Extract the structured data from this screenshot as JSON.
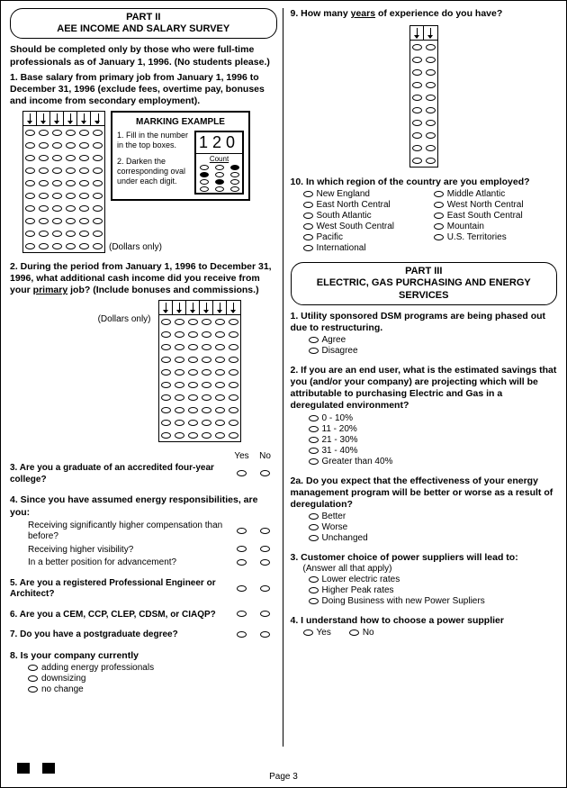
{
  "page_number": "Page 3",
  "left": {
    "part_header_line1": "PART II",
    "part_header_line2": "AEE INCOME AND SALARY SURVEY",
    "intro": "Should be completed only by those who were full-time professionals as of January 1, 1996. (No students please.)",
    "q1": "1. Base salary from primary job from January 1, 1996 to December 31, 1996 (exclude fees, overtime pay, bonuses and income from secondary employment).",
    "dollars_only": "(Dollars only)",
    "marking": {
      "title": "MARKING EXAMPLE",
      "step1": "1. Fill in the number in the top boxes.",
      "step2": "2. Darken the corresponding oval under each digit.",
      "example_num": "120",
      "example_label": "Count"
    },
    "q2_a": "2. During the period from January 1, 1996 to December 31, 1996, what additional cash income did you receive from your ",
    "q2_b": "primary",
    "q2_c": " job?  (Include bonuses and commissions.)",
    "yes": "Yes",
    "no": "No",
    "q3": "3. Are you a graduate of an accredited four-year college?",
    "q4": "4. Since you have assumed energy responsibilities, are you:",
    "q4a": "Receiving significantly higher compensation than before?",
    "q4b": "Receiving higher visibility?",
    "q4c": "In a better position for advancement?",
    "q5": "5. Are you a registered Professional Engineer or Architect?",
    "q6": "6. Are you a CEM, CCP, CLEP, CDSM, or CIAQP?",
    "q7": "7. Do you have a postgraduate degree?",
    "q8": "8. Is your company currently",
    "q8a": "adding energy professionals",
    "q8b": "downsizing",
    "q8c": "no change"
  },
  "right": {
    "q9_a": "9. How many ",
    "q9_b": "years",
    "q9_c": " of experience do you have?",
    "q10": "10. In which region of the country are you employed?",
    "regions_l": [
      "New England",
      "East North Central",
      "South Atlantic",
      "West South Central",
      "Pacific",
      "International"
    ],
    "regions_r": [
      "Middle Atlantic",
      "West North Central",
      "East South Central",
      "Mountain",
      "U.S. Territories"
    ],
    "part3_line1": "PART III",
    "part3_line2": "ELECTRIC, GAS PURCHASING AND ENERGY SERVICES",
    "q1": "1. Utility sponsored DSM programs are being phased out due to restructuring.",
    "q1_opts": [
      "Agree",
      "Disagree"
    ],
    "q2": "2. If you are an end user, what is the estimated savings that you (and/or your company) are projecting which will be attributable to purchasing Electric and Gas in a deregulated  environment?",
    "q2_opts": [
      "0 - 10%",
      "11 - 20%",
      "21 - 30%",
      "31 - 40%",
      "Greater than 40%"
    ],
    "q2a": "2a. Do you expect that the effectiveness of your energy management program will be better or worse as a result of deregulation?",
    "q2a_opts": [
      "Better",
      "Worse",
      "Unchanged"
    ],
    "q3": "3. Customer choice of power suppliers will lead to:",
    "q3_sub": "(Answer all that apply)",
    "q3_opts": [
      "Lower electric rates",
      "Higher Peak rates",
      "Doing Business with new Power Supliers"
    ],
    "q4": "4. I understand how to choose a power supplier",
    "q4_yes": "Yes",
    "q4_no": "No"
  },
  "grids": {
    "digit6": {
      "cols": 6,
      "rows": 10
    },
    "digit2": {
      "cols": 2,
      "rows": 10
    }
  }
}
